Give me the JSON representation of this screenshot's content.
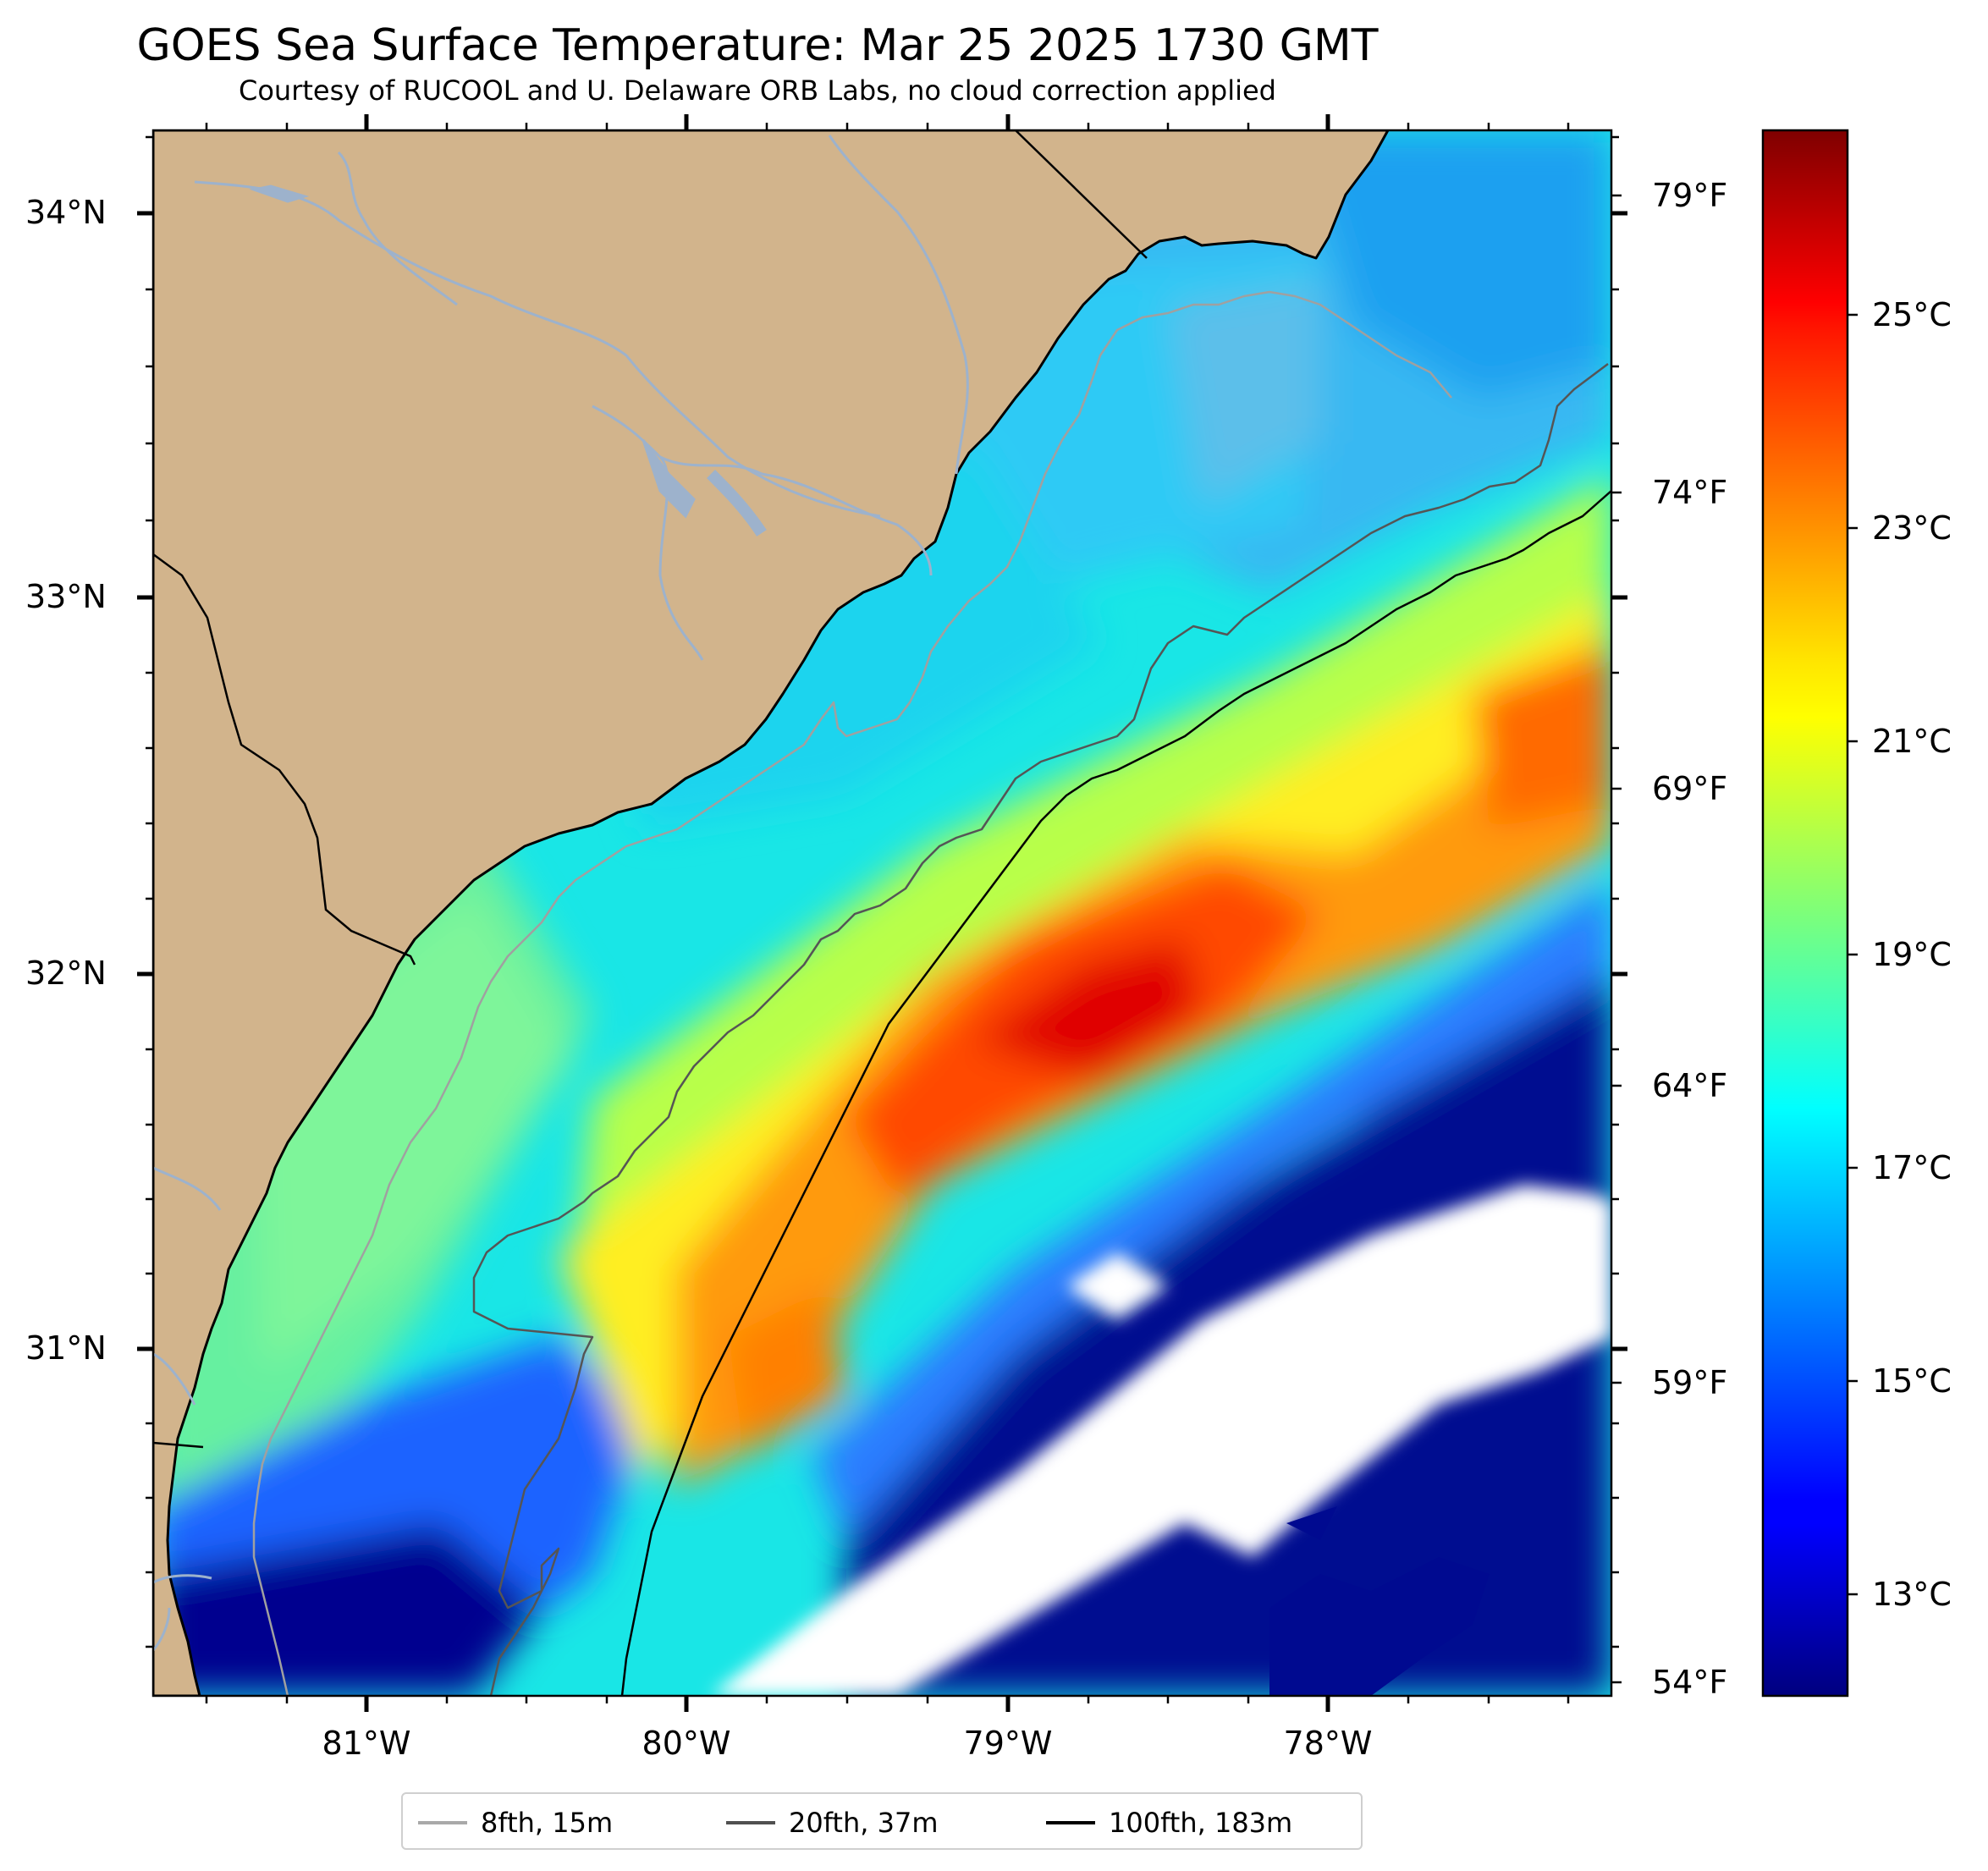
{
  "title": "GOES Sea Surface Temperature: Mar 25 2025 1730 GMT",
  "subtitle": "Courtesy of RUCOOL and U. Delaware ORB Labs, no cloud correction applied",
  "map": {
    "lon_range": [
      -81.67,
      -77.12
    ],
    "lat_range": [
      30.1,
      34.22
    ],
    "lat_ticks": [
      "34°N",
      "33°N",
      "32°N",
      "31°N"
    ],
    "lon_ticks": [
      "81°W",
      "80°W",
      "79°W",
      "78°W"
    ],
    "colors": {
      "land": "#d2b48c",
      "rivers": "#9db2cc",
      "no_data": "#ffffff",
      "coast": "#000000"
    }
  },
  "colorbar": {
    "colormap": "jet",
    "range_c": [
      12.1,
      26.8
    ],
    "celsius_labels": [
      "25°C",
      "23°C",
      "21°C",
      "19°C",
      "17°C",
      "15°C",
      "13°C"
    ],
    "fahrenheit_labels": [
      "79°F",
      "74°F",
      "69°F",
      "64°F",
      "59°F",
      "54°F"
    ]
  },
  "legend": [
    {
      "label": "8fth, 15m",
      "color": "#a9a9a9"
    },
    {
      "label": "20fth, 37m",
      "color": "#505050"
    },
    {
      "label": "100fth, 183m",
      "color": "#000000"
    }
  ]
}
